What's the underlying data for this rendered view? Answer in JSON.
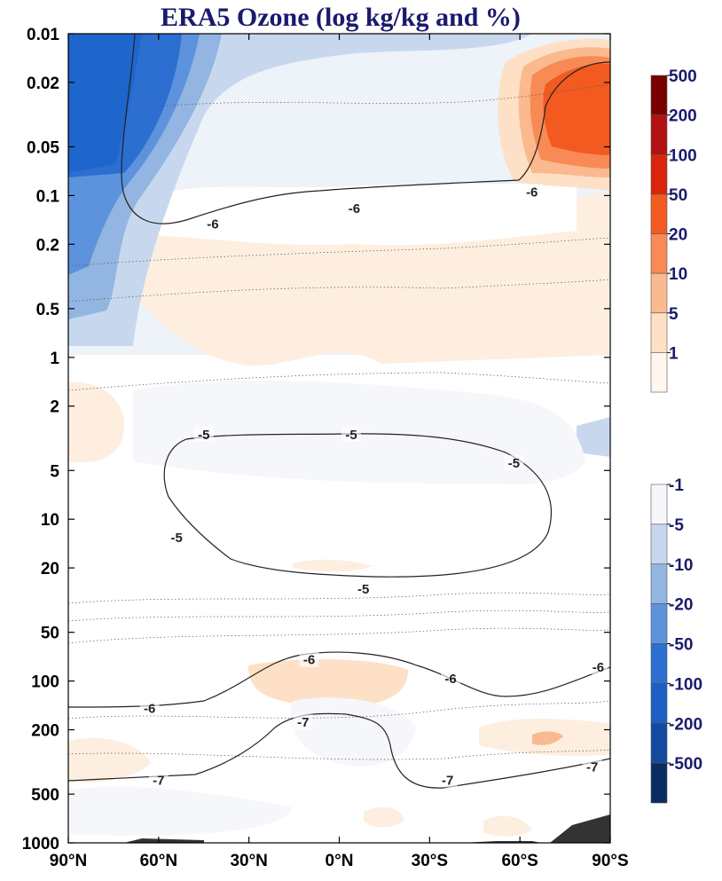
{
  "chart_data": {
    "type": "contour",
    "title": "ERA5 Ozone (log kg/kg and %)",
    "x_axis": {
      "ticks": [
        "90°N",
        "60°N",
        "30°N",
        "0°N",
        "30°S",
        "60°S",
        "90°S"
      ],
      "values": [
        90,
        60,
        30,
        0,
        -30,
        -60,
        -90
      ]
    },
    "y_axis": {
      "scale": "log",
      "reversed": true,
      "range": [
        0.01,
        1000
      ],
      "ticks": [
        "0.01",
        "0.02",
        "0.05",
        "0.1",
        "0.2",
        "0.5",
        "1",
        "2",
        "5",
        "10",
        "20",
        "50",
        "100",
        "200",
        "500",
        "1000"
      ],
      "values": [
        0.01,
        0.02,
        0.05,
        0.1,
        0.2,
        0.5,
        1,
        2,
        5,
        10,
        20,
        50,
        100,
        200,
        500,
        1000
      ]
    },
    "colorbar_positive": {
      "levels": [
        "500",
        "200",
        "100",
        "50",
        "20",
        "10",
        "5",
        "1"
      ],
      "colors": [
        "#7a0000",
        "#b21212",
        "#d9250b",
        "#f25a20",
        "#f78a55",
        "#fab98f",
        "#fde0c5",
        "#fff6ee"
      ]
    },
    "colorbar_negative": {
      "levels": [
        "-1",
        "-5",
        "-10",
        "-20",
        "-50",
        "-100",
        "-200",
        "-500"
      ],
      "colors": [
        "#f6f7fb",
        "#c7d8ee",
        "#93b5e1",
        "#5d93dc",
        "#2c6fd1",
        "#1e5fc3",
        "#124ba0",
        "#0a2c63"
      ]
    },
    "contour_labels": [
      {
        "text": "-6",
        "lat": 42,
        "p": 0.15
      },
      {
        "text": "-6",
        "lat": -5,
        "p": 0.12
      },
      {
        "text": "-6",
        "lat": -64,
        "p": 0.095
      },
      {
        "text": "-5",
        "lat": 45,
        "p": 3
      },
      {
        "text": "-5",
        "lat": -4,
        "p": 3
      },
      {
        "text": "-5",
        "lat": -58,
        "p": 4.5
      },
      {
        "text": "-5",
        "lat": 54,
        "p": 13
      },
      {
        "text": "-5",
        "lat": -8,
        "p": 27
      },
      {
        "text": "-6",
        "lat": 10,
        "p": 74
      },
      {
        "text": "-6",
        "lat": -37,
        "p": 97
      },
      {
        "text": "-6",
        "lat": -86,
        "p": 82
      },
      {
        "text": "-6",
        "lat": 63,
        "p": 148
      },
      {
        "text": "-7",
        "lat": 12,
        "p": 180
      },
      {
        "text": "-7",
        "lat": -36,
        "p": 410
      },
      {
        "text": "-7",
        "lat": -84,
        "p": 340
      },
      {
        "text": "-7",
        "lat": 60,
        "p": 410
      }
    ]
  }
}
